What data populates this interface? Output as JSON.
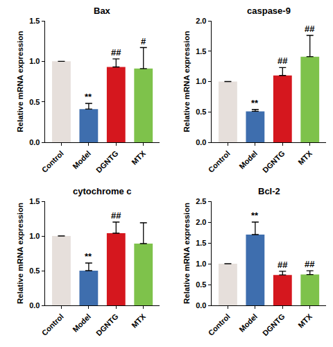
{
  "chart_data": [
    {
      "type": "bar",
      "title": "Bax",
      "y_label": "Relative mRNA expression",
      "categories": [
        "Control",
        "Model",
        "DGNTG",
        "MTX"
      ],
      "values": [
        1.0,
        0.41,
        0.93,
        0.91
      ],
      "errors": [
        0,
        0.07,
        0.1,
        0.26
      ],
      "colors": [
        "#e6dfdb",
        "#3e6eae",
        "#d5171e",
        "#7ec24b"
      ],
      "ylim": [
        0,
        1.5
      ],
      "yticks": [
        {
          "value": 0,
          "label": "0.0"
        },
        {
          "value": 0.5,
          "label": "0.5"
        },
        {
          "value": 1,
          "label": "1.0"
        },
        {
          "value": 1.5,
          "label": "1.5"
        }
      ],
      "annotations": [
        {
          "category": "Model",
          "text": "**"
        },
        {
          "category": "DGNTG",
          "text": "##"
        },
        {
          "category": "MTX",
          "text": "#"
        }
      ]
    },
    {
      "type": "bar",
      "title": "caspase-9",
      "y_label": "Relative mRNA expression",
      "categories": [
        "Control",
        "Model",
        "DGNTG",
        "MTX"
      ],
      "values": [
        1.0,
        0.51,
        1.1,
        1.41
      ],
      "errors": [
        0,
        0.03,
        0.13,
        0.35
      ],
      "colors": [
        "#e6dfdb",
        "#3e6eae",
        "#d5171e",
        "#7ec24b"
      ],
      "ylim": [
        0,
        2
      ],
      "yticks": [
        {
          "value": 0,
          "label": "0.0"
        },
        {
          "value": 0.5,
          "label": "0.5"
        },
        {
          "value": 1,
          "label": "1.0"
        },
        {
          "value": 1.5,
          "label": "1.5"
        },
        {
          "value": 2,
          "label": "2.0"
        }
      ],
      "annotations": [
        {
          "category": "Model",
          "text": "**"
        },
        {
          "category": "DGNTG",
          "text": "##"
        },
        {
          "category": "MTX",
          "text": "##"
        }
      ]
    },
    {
      "type": "bar",
      "title": "cytochrome c",
      "y_label": "Relative mRNA expression",
      "categories": [
        "Control",
        "Model",
        "DGNTG",
        "MTX"
      ],
      "values": [
        1.0,
        0.5,
        1.04,
        0.89
      ],
      "errors": [
        0,
        0.11,
        0.16,
        0.3
      ],
      "colors": [
        "#e6dfdb",
        "#3e6eae",
        "#d5171e",
        "#7ec24b"
      ],
      "ylim": [
        0,
        1.5
      ],
      "yticks": [
        {
          "value": 0,
          "label": "0.0"
        },
        {
          "value": 0.5,
          "label": "0.5"
        },
        {
          "value": 1,
          "label": "1.0"
        },
        {
          "value": 1.5,
          "label": "1.5"
        }
      ],
      "annotations": [
        {
          "category": "Model",
          "text": "**"
        },
        {
          "category": "DGNTG",
          "text": "##"
        }
      ]
    },
    {
      "type": "bar",
      "title": "Bcl-2",
      "y_label": "Relative mRNA expression",
      "categories": [
        "Control",
        "Model",
        "DGNTG",
        "MTX"
      ],
      "values": [
        1.0,
        1.7,
        0.73,
        0.74
      ],
      "errors": [
        0,
        0.3,
        0.09,
        0.09
      ],
      "colors": [
        "#e6dfdb",
        "#3e6eae",
        "#d5171e",
        "#7ec24b"
      ],
      "ylim": [
        0,
        2.5
      ],
      "yticks": [
        {
          "value": 0,
          "label": "0.0"
        },
        {
          "value": 0.5,
          "label": "0.5"
        },
        {
          "value": 1,
          "label": "1.0"
        },
        {
          "value": 1.5,
          "label": "1.5"
        },
        {
          "value": 2,
          "label": "2.0"
        },
        {
          "value": 2.5,
          "label": "2.5"
        }
      ],
      "annotations": [
        {
          "category": "Model",
          "text": "**"
        },
        {
          "category": "DGNTG",
          "text": "##"
        },
        {
          "category": "MTX",
          "text": "##"
        }
      ]
    }
  ]
}
